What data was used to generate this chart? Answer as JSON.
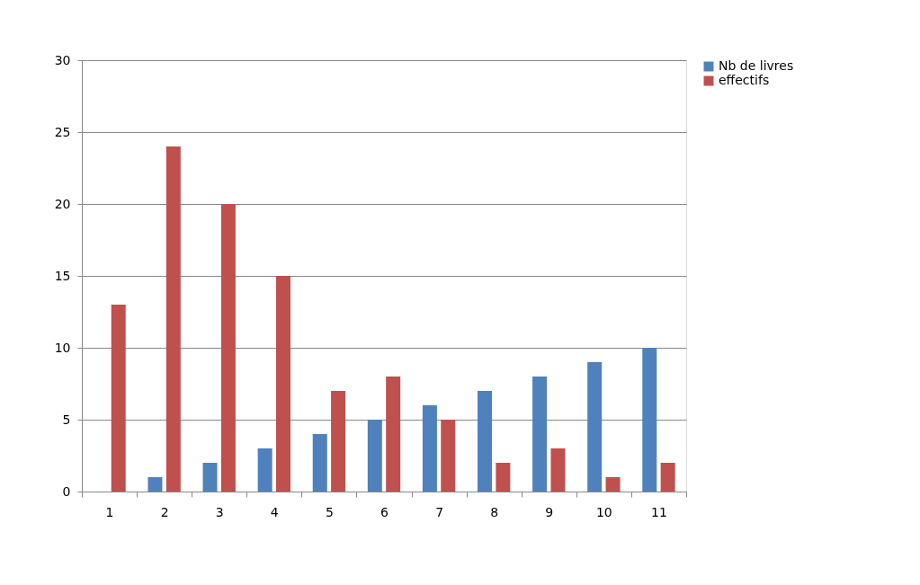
{
  "chart_data": {
    "type": "bar",
    "categories": [
      "1",
      "2",
      "3",
      "4",
      "5",
      "6",
      "7",
      "8",
      "9",
      "10",
      "11"
    ],
    "series": [
      {
        "name": "Nb de livres",
        "color": "#4f81bd",
        "values": [
          0,
          1,
          2,
          3,
          4,
          5,
          6,
          7,
          8,
          9,
          10
        ]
      },
      {
        "name": "effectifs",
        "color": "#c0504d",
        "values": [
          13,
          24,
          20,
          15,
          7,
          8,
          5,
          2,
          3,
          1,
          2
        ]
      }
    ],
    "ylim": [
      0,
      30
    ],
    "yticks": [
      0,
      5,
      10,
      15,
      20,
      25,
      30
    ],
    "grid": "y",
    "legend": "right"
  }
}
